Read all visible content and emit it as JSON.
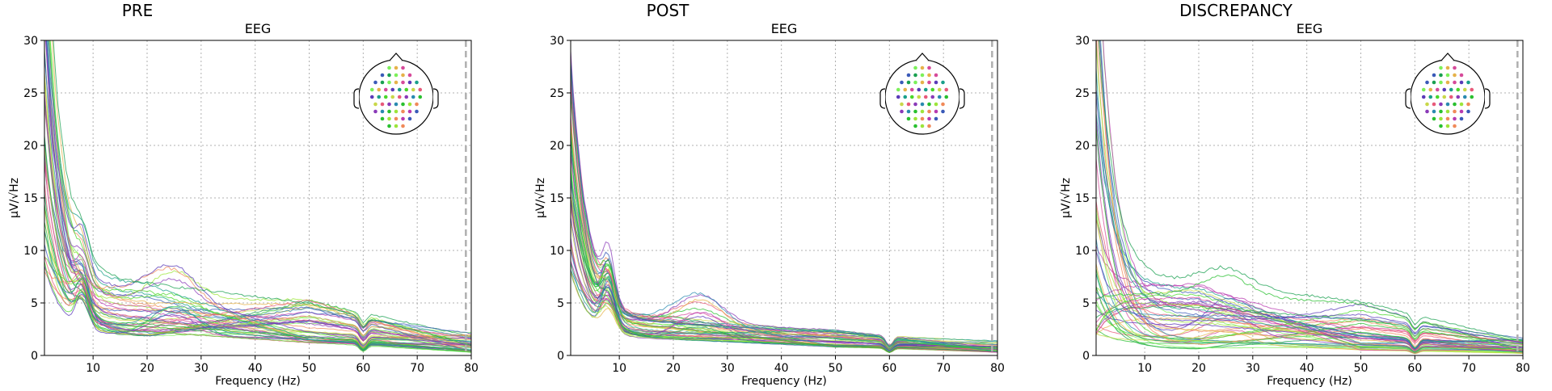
{
  "chart_data": [
    {
      "type": "line",
      "panel_title": "PRE",
      "title": "EEG",
      "xlabel": "Frequency (Hz)",
      "ylabel": "µV/√Hz",
      "xlim": [
        1,
        80
      ],
      "ylim": [
        0,
        30
      ],
      "xticks": [
        10,
        20,
        30,
        40,
        50,
        60,
        70,
        80
      ],
      "yticks": [
        0,
        5,
        10,
        15,
        20,
        25,
        30
      ],
      "grid": true,
      "legend": "top-right sensor-position head inset",
      "highpass_marker_hz": 79,
      "series_profile": {
        "count": 48,
        "value_at_1hz_range": [
          8,
          45
        ],
        "alpha_peak_hz": 8,
        "alpha_peak_value": 10,
        "value_at_20hz_range": [
          1.8,
          7
        ],
        "value_at_50hz_range": [
          1.2,
          5.5
        ],
        "line_noise_dip_hz": 60,
        "value_at_80hz_range": [
          0.3,
          2.2
        ]
      }
    },
    {
      "type": "line",
      "panel_title": "POST",
      "title": "EEG",
      "xlabel": "Frequency (Hz)",
      "ylabel": "µV/√Hz",
      "xlim": [
        1,
        80
      ],
      "ylim": [
        0,
        30
      ],
      "xticks": [
        10,
        20,
        30,
        40,
        50,
        60,
        70,
        80
      ],
      "yticks": [
        0,
        5,
        10,
        15,
        20,
        25,
        30
      ],
      "grid": true,
      "legend": "top-right sensor-position head inset",
      "highpass_marker_hz": 79,
      "series_profile": {
        "count": 48,
        "value_at_1hz_range": [
          8,
          29
        ],
        "alpha_peak_hz": 8,
        "alpha_peak_value": 12,
        "value_at_20hz_range": [
          1.5,
          4
        ],
        "value_at_50hz_range": [
          0.8,
          2.5
        ],
        "line_noise_dip_hz": 60,
        "value_at_80hz_range": [
          0.3,
          1.5
        ]
      }
    },
    {
      "type": "line",
      "panel_title": "DISCREPANCY",
      "title": "EEG",
      "xlabel": "Frequency (Hz)",
      "ylabel": "µV/√Hz",
      "xlim": [
        1,
        80
      ],
      "ylim": [
        0,
        30
      ],
      "xticks": [
        10,
        20,
        30,
        40,
        50,
        60,
        70,
        80
      ],
      "yticks": [
        0,
        5,
        10,
        15,
        20,
        25,
        30
      ],
      "grid": true,
      "legend": "top-right sensor-position head inset",
      "highpass_marker_hz": 79,
      "series_profile": {
        "count": 48,
        "value_at_1hz_range": [
          2,
          45
        ],
        "alpha_peak_hz": null,
        "value_at_20hz_range": [
          0.6,
          7
        ],
        "value_at_50hz_range": [
          0.5,
          5.2
        ],
        "line_noise_dip_hz": 60,
        "value_at_80hz_range": [
          0.2,
          1.8
        ]
      }
    }
  ],
  "colors": {
    "grid": "#b0b0b0",
    "axes": "#000000",
    "marker": "#b0b0b0",
    "sensor_palette": [
      "#7cf05a",
      "#9de53a",
      "#c9d84a",
      "#e6b24a",
      "#f08a5a",
      "#e85a7a",
      "#d64a9a",
      "#b83ab0",
      "#8a3ab8",
      "#5a3ab8",
      "#3a5ab8",
      "#2a8ab0",
      "#1aa08a",
      "#1aa050",
      "#2ac030",
      "#4ad82a"
    ]
  }
}
